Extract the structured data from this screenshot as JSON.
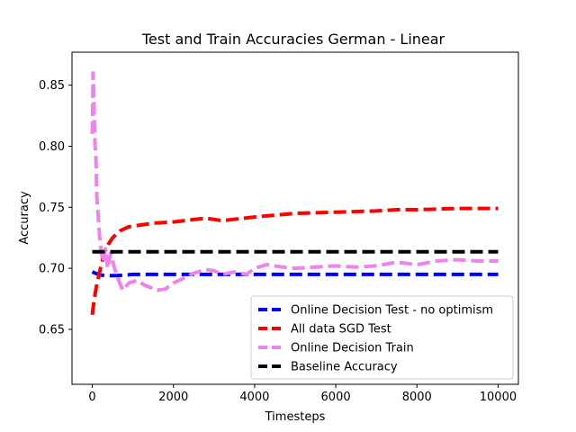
{
  "chart_data": {
    "type": "line",
    "title": "Test and Train Accuracies German - Linear",
    "xlabel": "Timesteps",
    "ylabel": "Accuracy",
    "xlim": [
      -500,
      10500
    ],
    "ylim": [
      0.605,
      0.877
    ],
    "xticks": [
      0,
      2000,
      4000,
      6000,
      8000,
      10000
    ],
    "yticks": [
      0.65,
      0.7,
      0.75,
      0.8,
      0.85
    ],
    "ytick_labels": [
      "0.65",
      "0.70",
      "0.75",
      "0.80",
      "0.85"
    ],
    "legend_position": "lower-right",
    "grid": false,
    "series": [
      {
        "name": "Online Decision Test - no optimism",
        "color": "#0000ff",
        "dash": "dashed",
        "x": [
          0,
          150,
          300,
          600,
          1000,
          2000,
          3000,
          4000,
          5000,
          6000,
          7000,
          8000,
          9000,
          10000
        ],
        "y": [
          0.697,
          0.695,
          0.694,
          0.694,
          0.695,
          0.695,
          0.695,
          0.695,
          0.695,
          0.695,
          0.695,
          0.695,
          0.695,
          0.695
        ]
      },
      {
        "name": "All data SGD Test",
        "color": "#ff0000",
        "dash": "dashed",
        "x": [
          0,
          50,
          100,
          200,
          300,
          400,
          500,
          700,
          900,
          1100,
          1500,
          2000,
          2500,
          2800,
          3200,
          4000,
          5000,
          6000,
          7000,
          7500,
          8000,
          9000,
          10000
        ],
        "y": [
          0.662,
          0.675,
          0.685,
          0.7,
          0.713,
          0.72,
          0.725,
          0.731,
          0.734,
          0.735,
          0.737,
          0.738,
          0.74,
          0.741,
          0.739,
          0.742,
          0.745,
          0.746,
          0.747,
          0.748,
          0.748,
          0.749,
          0.749
        ]
      },
      {
        "name": "Online Decision Train",
        "color": "#ee82ee",
        "dash": "dashed",
        "x": [
          0,
          10,
          20,
          35,
          50,
          70,
          90,
          110,
          130,
          160,
          190,
          230,
          270,
          320,
          380,
          450,
          550,
          650,
          750,
          900,
          1100,
          1300,
          1600,
          1800,
          2000,
          2200,
          2500,
          2800,
          3000,
          3200,
          3500,
          3800,
          4000,
          4300,
          4700,
          5000,
          5500,
          6000,
          6500,
          7000,
          7500,
          8000,
          8500,
          9000,
          9500,
          10000
        ],
        "y": [
          0.81,
          0.83,
          0.86,
          0.845,
          0.82,
          0.8,
          0.79,
          0.76,
          0.75,
          0.735,
          0.722,
          0.712,
          0.705,
          0.716,
          0.7,
          0.712,
          0.7,
          0.69,
          0.682,
          0.688,
          0.69,
          0.686,
          0.682,
          0.683,
          0.688,
          0.691,
          0.696,
          0.699,
          0.698,
          0.695,
          0.697,
          0.695,
          0.7,
          0.703,
          0.701,
          0.7,
          0.701,
          0.702,
          0.701,
          0.702,
          0.705,
          0.703,
          0.706,
          0.707,
          0.706,
          0.706
        ]
      },
      {
        "name": "Baseline Accuracy",
        "color": "#000000",
        "dash": "dashed",
        "x": [
          0,
          10000
        ],
        "y": [
          0.7135,
          0.7135
        ]
      }
    ]
  }
}
